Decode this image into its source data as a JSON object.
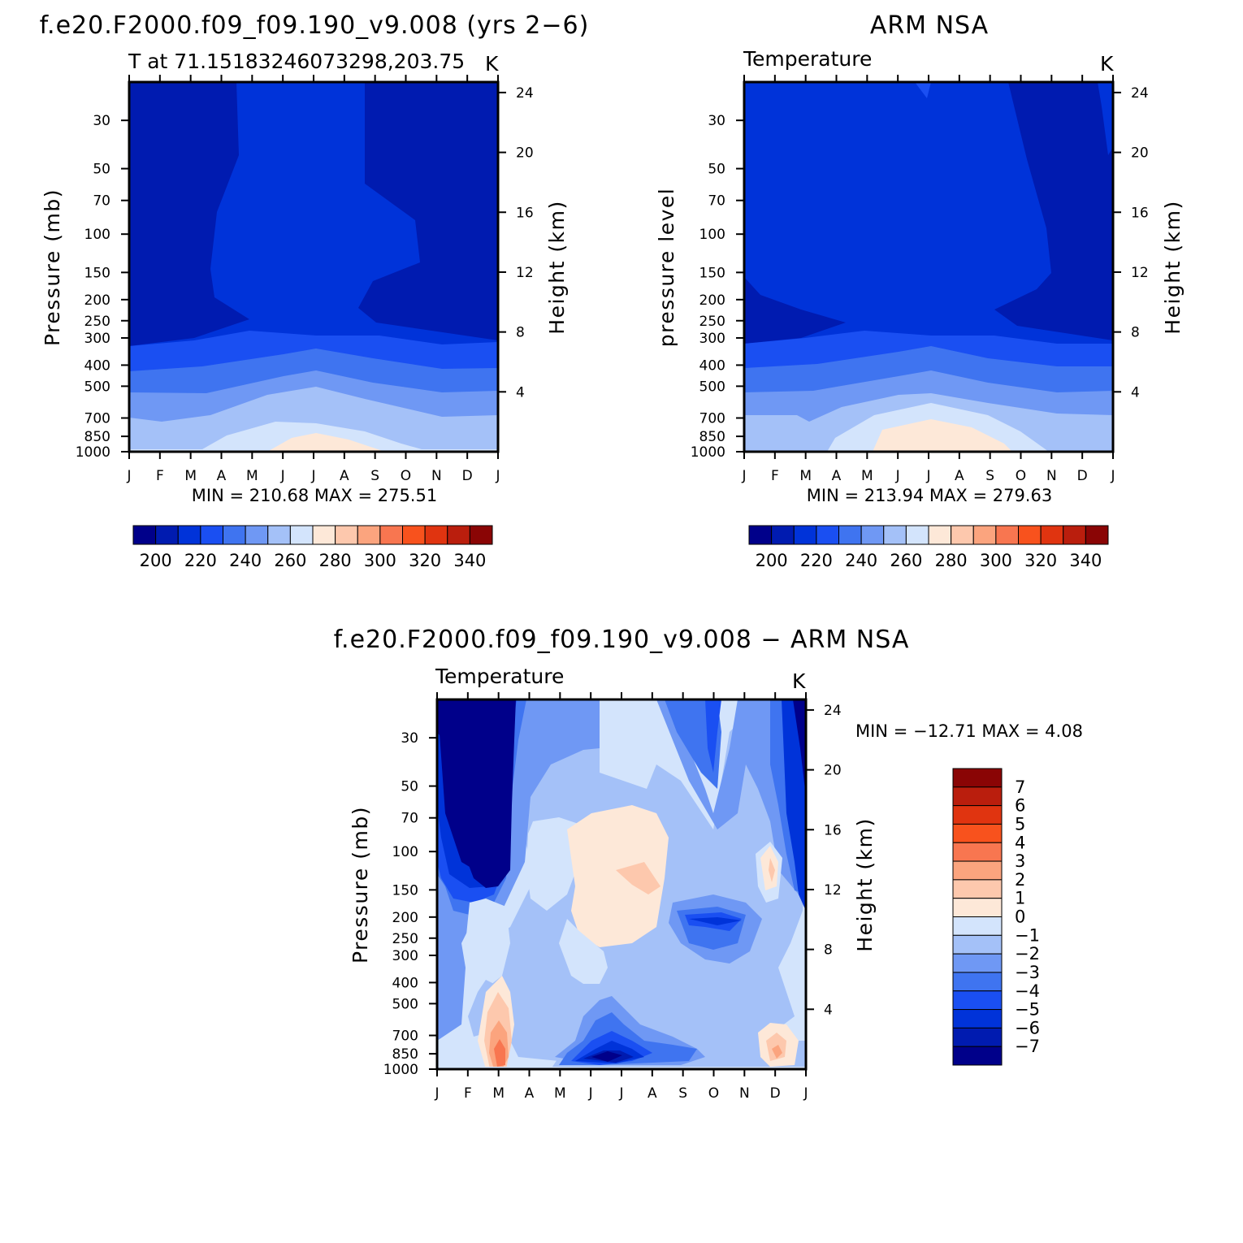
{
  "colors": {
    "levels_abs": [
      "#00008a",
      "#001bb0",
      "#0033d9",
      "#1a4ff2",
      "#3f74f0",
      "#6f98f4",
      "#a4c1f8",
      "#d3e4fc",
      "#fde8d8",
      "#fdc8ad",
      "#fba47e",
      "#f87650",
      "#f8521d",
      "#e03410",
      "#ba1e0d",
      "#8a0505"
    ],
    "levels_diff": [
      "#00008a",
      "#001bb0",
      "#0033d9",
      "#1a4ff2",
      "#3f74f0",
      "#6f98f4",
      "#a4c1f8",
      "#d3e4fc",
      "#fde8d8",
      "#fdc8ad",
      "#fba47e",
      "#f87650",
      "#f8521d",
      "#e03410",
      "#ba1e0d",
      "#8a0505"
    ]
  },
  "panels": [
    {
      "id": "model",
      "title": "f.e20.F2000.f09_f09.190_v9.008 (yrs 2−6)",
      "left_label": "T at 71.15183246073298,203.75",
      "right_label": "K",
      "ylabel": "Pressure (mb)",
      "y2label": "Height (km)",
      "minmax": "MIN =  210.68  MAX =  275.51"
    },
    {
      "id": "obs",
      "title": "ARM NSA",
      "left_label": "Temperature",
      "right_label": "K",
      "ylabel": "pressure level",
      "y2label": "Height (km)",
      "minmax": "MIN =  213.94  MAX =  279.63"
    },
    {
      "id": "diff",
      "title": "f.e20.F2000.f09_f09.190_v9.008 − ARM NSA",
      "left_label": "Temperature",
      "right_label": "K",
      "ylabel": "Pressure (mb)",
      "y2label": "Height (km)",
      "minmax": "MIN = −12.71  MAX =     4.08"
    }
  ],
  "colorbar_abs": {
    "labels": [
      "200",
      "220",
      "240",
      "260",
      "280",
      "300",
      "320",
      "340"
    ]
  },
  "colorbar_diff": {
    "labels": [
      "7",
      "6",
      "5",
      "4",
      "3",
      "2",
      "1",
      "0",
      "−1",
      "−2",
      "−3",
      "−4",
      "−5",
      "−6",
      "−7"
    ]
  },
  "chart_data": [
    {
      "type": "heatmap",
      "title": "f.e20.F2000.f09_f09.190_v9.008 (yrs 2−6)",
      "subtitle": "T at 71.15183246073298,203.75",
      "units": "K",
      "x": [
        "J",
        "F",
        "M",
        "A",
        "M",
        "J",
        "J",
        "A",
        "S",
        "O",
        "N",
        "D",
        "J"
      ],
      "y_pressure_mb": [
        1000,
        850,
        700,
        500,
        400,
        300,
        250,
        200,
        150,
        100,
        70,
        50,
        30
      ],
      "y2_height_km": [
        4,
        8,
        12,
        16,
        20,
        24
      ],
      "xlabel": "",
      "ylabel": "Pressure (mb)",
      "y2label": "Height (km)",
      "min": 210.68,
      "max": 275.51,
      "contour_levels": [
        195,
        205,
        215,
        225,
        235,
        245,
        255,
        265,
        275,
        285,
        295,
        305,
        315,
        325,
        335
      ],
      "colorbar_labels": [
        200,
        220,
        240,
        260,
        280,
        300,
        320,
        340
      ]
    },
    {
      "type": "heatmap",
      "title": "ARM NSA",
      "subtitle": "Temperature",
      "units": "K",
      "x": [
        "J",
        "F",
        "M",
        "A",
        "M",
        "J",
        "J",
        "A",
        "S",
        "O",
        "N",
        "D",
        "J"
      ],
      "y_pressure_mb": [
        1000,
        850,
        700,
        500,
        400,
        300,
        250,
        200,
        150,
        100,
        70,
        50,
        30
      ],
      "y2_height_km": [
        4,
        8,
        12,
        16,
        20,
        24
      ],
      "xlabel": "",
      "ylabel": "pressure level",
      "y2label": "Height (km)",
      "min": 213.94,
      "max": 279.63,
      "contour_levels": [
        195,
        205,
        215,
        225,
        235,
        245,
        255,
        265,
        275,
        285,
        295,
        305,
        315,
        325,
        335
      ],
      "colorbar_labels": [
        200,
        220,
        240,
        260,
        280,
        300,
        320,
        340
      ]
    },
    {
      "type": "heatmap",
      "title": "f.e20.F2000.f09_f09.190_v9.008 − ARM NSA",
      "subtitle": "Temperature",
      "units": "K",
      "x": [
        "J",
        "F",
        "M",
        "A",
        "M",
        "J",
        "J",
        "A",
        "S",
        "O",
        "N",
        "D",
        "J"
      ],
      "y_pressure_mb": [
        1000,
        850,
        700,
        500,
        400,
        300,
        250,
        200,
        150,
        100,
        70,
        50,
        30
      ],
      "y2_height_km": [
        4,
        8,
        12,
        16,
        20,
        24
      ],
      "xlabel": "",
      "ylabel": "Pressure (mb)",
      "y2label": "Height (km)",
      "min": -12.71,
      "max": 4.08,
      "contour_levels": [
        -7,
        -6,
        -5,
        -4,
        -3,
        -2,
        -1,
        0,
        1,
        2,
        3,
        4,
        5,
        6,
        7
      ],
      "colorbar_labels": [
        7,
        6,
        5,
        4,
        3,
        2,
        1,
        0,
        -1,
        -2,
        -3,
        -4,
        -5,
        -6,
        -7
      ]
    }
  ]
}
